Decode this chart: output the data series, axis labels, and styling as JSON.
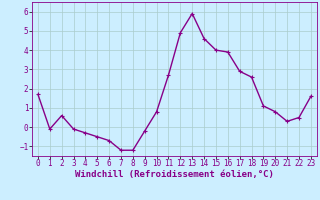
{
  "xlabel": "Windchill (Refroidissement éolien,°C)",
  "x_values": [
    0,
    1,
    2,
    3,
    4,
    5,
    6,
    7,
    8,
    9,
    10,
    11,
    12,
    13,
    14,
    15,
    16,
    17,
    18,
    19,
    20,
    21,
    22,
    23
  ],
  "y_values": [
    1.7,
    -0.1,
    0.6,
    -0.1,
    -0.3,
    -0.5,
    -0.7,
    -1.2,
    -1.2,
    -0.2,
    0.8,
    2.7,
    4.9,
    5.9,
    4.6,
    4.0,
    3.9,
    2.9,
    2.6,
    1.1,
    0.8,
    0.3,
    0.5,
    1.6
  ],
  "line_color": "#880088",
  "bg_color": "#cceeff",
  "grid_color": "#aacccc",
  "ylim": [
    -1.5,
    6.5
  ],
  "yticks": [
    -1,
    0,
    1,
    2,
    3,
    4,
    5,
    6
  ],
  "xlim": [
    -0.5,
    23.5
  ],
  "xticks": [
    0,
    1,
    2,
    3,
    4,
    5,
    6,
    7,
    8,
    9,
    10,
    11,
    12,
    13,
    14,
    15,
    16,
    17,
    18,
    19,
    20,
    21,
    22,
    23
  ],
  "xlabel_fontsize": 6.5,
  "tick_fontsize": 5.5,
  "marker_size": 2.5,
  "line_width": 1.0
}
